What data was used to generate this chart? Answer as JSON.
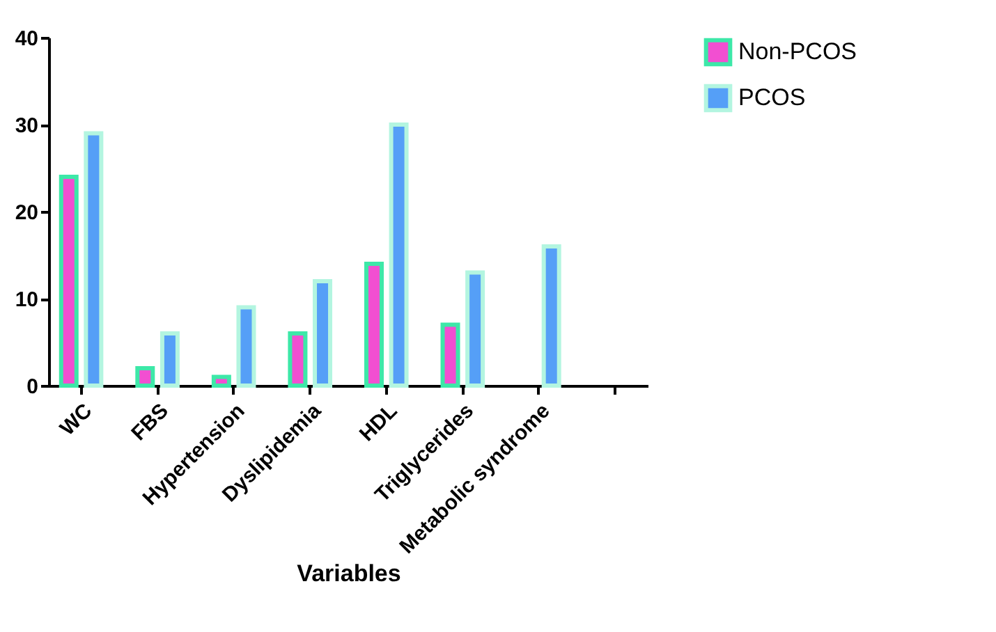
{
  "chart_data": {
    "type": "bar",
    "xlabel": "Variables",
    "categories": [
      "WC",
      "FBS",
      "Hypertension",
      "Dyslipidemia",
      "HDL",
      "Triglycerides",
      "Metabolic syndrome",
      null
    ],
    "series": [
      {
        "name": "Non-PCOS",
        "color": "#f24fd1",
        "values": [
          24,
          2,
          1,
          6,
          14,
          7,
          null,
          null
        ]
      },
      {
        "name": "PCOS",
        "color": "#559ff7",
        "values": [
          29,
          6,
          9,
          12,
          30,
          13,
          16,
          null
        ]
      }
    ],
    "ylim": [
      0,
      40
    ],
    "yticks": [
      0,
      10,
      20,
      30,
      40
    ],
    "grid": false,
    "legend": "right"
  }
}
